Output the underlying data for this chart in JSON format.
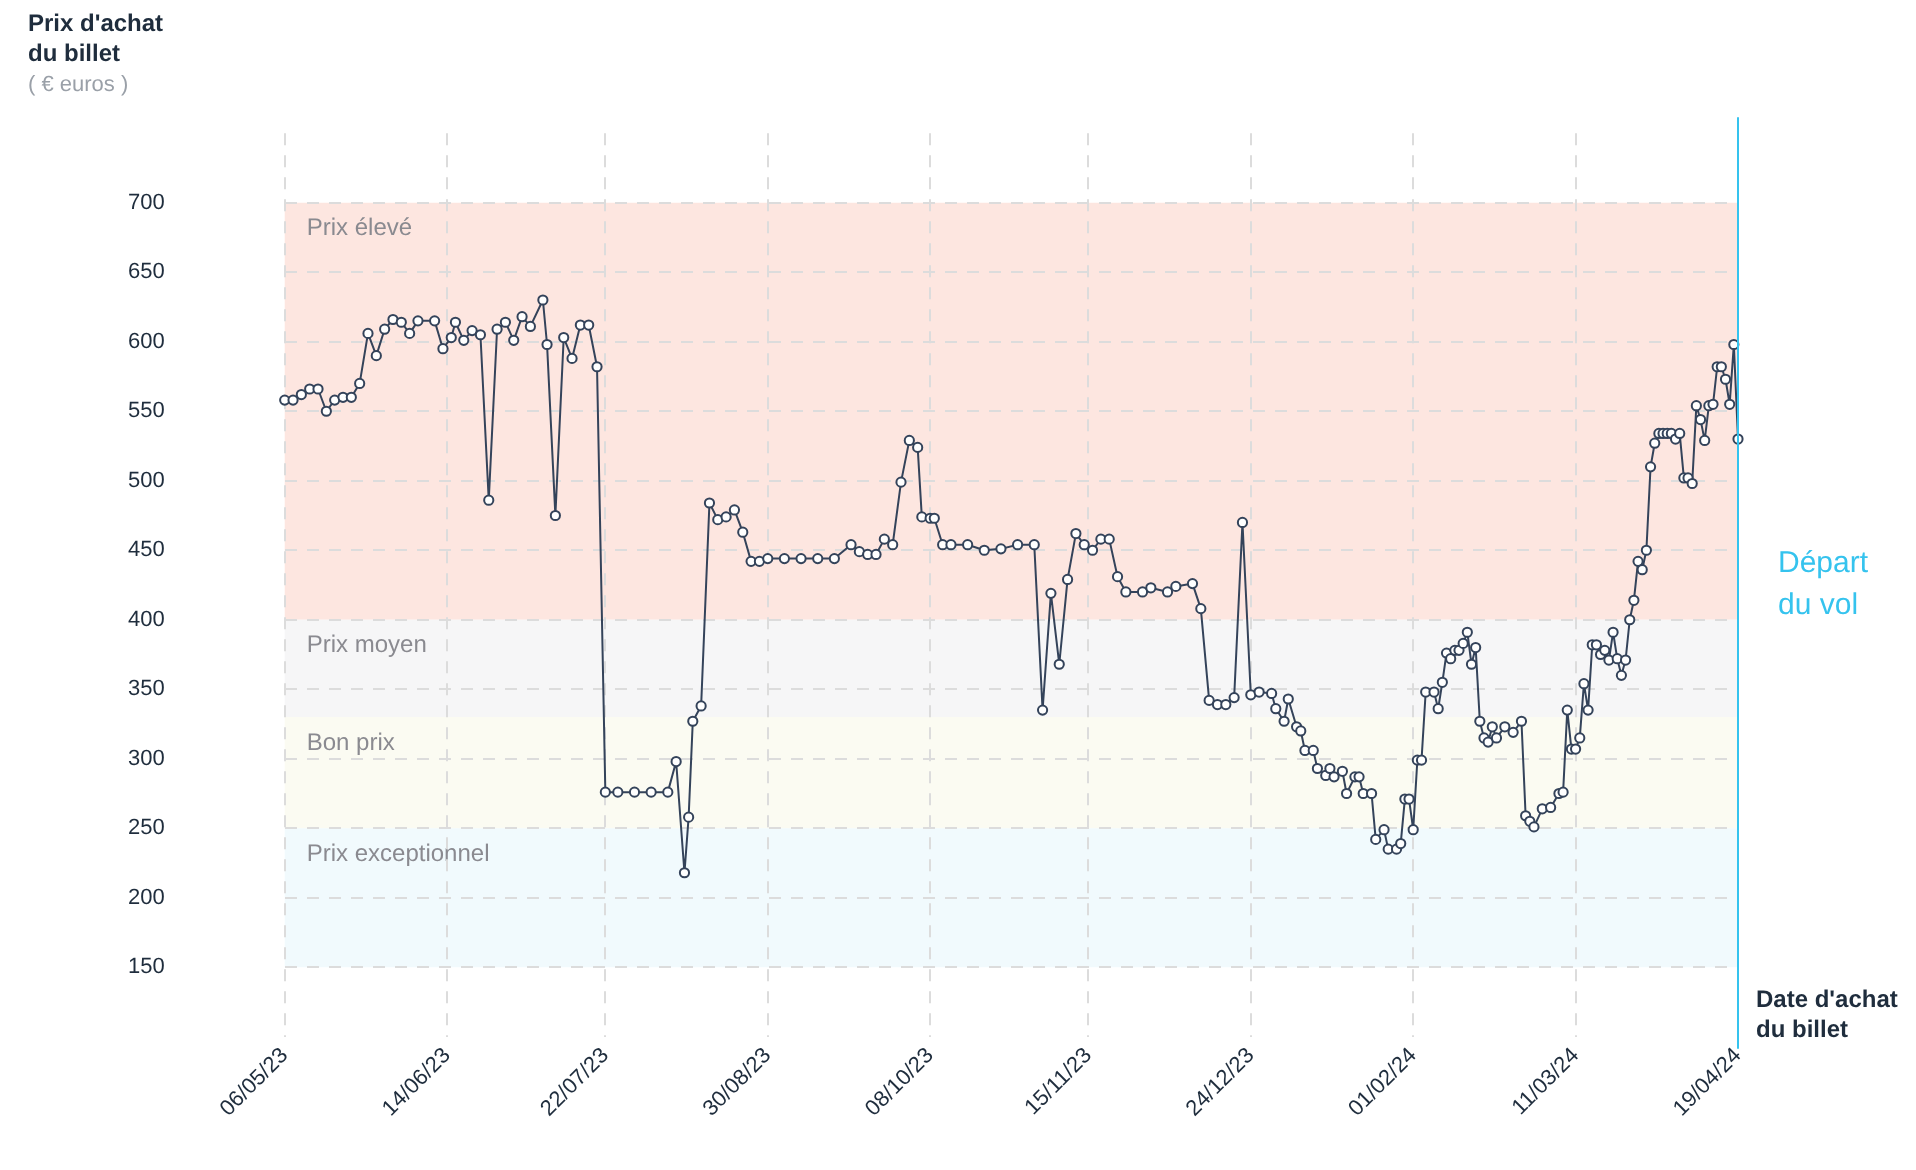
{
  "chart_data": {
    "type": "line",
    "ylabel": "Prix d'achat du billet",
    "xlabel": "Date d'achat du billet",
    "annotations": [
      "( € euros )"
    ],
    "xlim": [
      "2023-05-06",
      "2024-04-19"
    ],
    "xticks": [
      {
        "value": "2023-05-06",
        "label": "06/05/23"
      },
      {
        "value": "2023-06-14",
        "label": "14/06/23"
      },
      {
        "value": "2023-07-22",
        "label": "22/07/23"
      },
      {
        "value": "2023-08-30",
        "label": "30/08/23"
      },
      {
        "value": "2023-10-08",
        "label": "08/10/23"
      },
      {
        "value": "2023-11-15",
        "label": "15/11/23"
      },
      {
        "value": "2023-12-24",
        "label": "24/12/23"
      },
      {
        "value": "2024-02-01",
        "label": "01/02/24"
      },
      {
        "value": "2024-03-11",
        "label": "11/03/24"
      },
      {
        "value": "2024-04-19",
        "label": "19/04/24"
      }
    ],
    "ylim": [
      100,
      750
    ],
    "yticks": [
      150,
      200,
      250,
      300,
      350,
      400,
      450,
      500,
      550,
      600,
      650,
      700
    ],
    "grid": true,
    "legend": false,
    "marker": "circle",
    "line_style": "solid",
    "bands": [
      {
        "axis": "y",
        "from": 400,
        "to": 700,
        "label": "Prix élevé",
        "color": "#fde6e0"
      },
      {
        "axis": "y",
        "from": 330,
        "to": 400,
        "label": "Prix moyen",
        "color": "#f6f6f7"
      },
      {
        "axis": "y",
        "from": 250,
        "to": 330,
        "label": "Bon prix",
        "color": "#fbfbf2"
      },
      {
        "axis": "y",
        "from": 150,
        "to": 250,
        "label": "Prix exceptionnel",
        "color": "#f1fafd"
      }
    ],
    "ref_lines": [
      {
        "axis": "x",
        "value": "2024-04-19",
        "label": "Départ du vol",
        "color": "#35c3ee"
      }
    ],
    "series": [
      {
        "color": "#34435a",
        "x": [
          "2023-05-06",
          "2023-05-08",
          "2023-05-10",
          "2023-05-12",
          "2023-05-14",
          "2023-05-16",
          "2023-05-18",
          "2023-05-20",
          "2023-05-22",
          "2023-05-24",
          "2023-05-26",
          "2023-05-28",
          "2023-05-30",
          "2023-06-01",
          "2023-06-03",
          "2023-06-05",
          "2023-06-07",
          "2023-06-11",
          "2023-06-13",
          "2023-06-15",
          "2023-06-16",
          "2023-06-18",
          "2023-06-20",
          "2023-06-22",
          "2023-06-24",
          "2023-06-26",
          "2023-06-28",
          "2023-06-30",
          "2023-07-02",
          "2023-07-04",
          "2023-07-07",
          "2023-07-08",
          "2023-07-10",
          "2023-07-12",
          "2023-07-14",
          "2023-07-16",
          "2023-07-18",
          "2023-07-20",
          "2023-07-22",
          "2023-07-25",
          "2023-07-29",
          "2023-08-02",
          "2023-08-06",
          "2023-08-08",
          "2023-08-10",
          "2023-08-11",
          "2023-08-12",
          "2023-08-14",
          "2023-08-16",
          "2023-08-18",
          "2023-08-20",
          "2023-08-22",
          "2023-08-24",
          "2023-08-26",
          "2023-08-28",
          "2023-08-30",
          "2023-09-03",
          "2023-09-07",
          "2023-09-11",
          "2023-09-15",
          "2023-09-19",
          "2023-09-21",
          "2023-09-23",
          "2023-09-25",
          "2023-09-27",
          "2023-09-29",
          "2023-10-01",
          "2023-10-03",
          "2023-10-05",
          "2023-10-06",
          "2023-10-08",
          "2023-10-09",
          "2023-10-11",
          "2023-10-13",
          "2023-10-17",
          "2023-10-21",
          "2023-10-25",
          "2023-10-29",
          "2023-11-02",
          "2023-11-04",
          "2023-11-06",
          "2023-11-08",
          "2023-11-10",
          "2023-11-12",
          "2023-11-14",
          "2023-11-16",
          "2023-11-18",
          "2023-11-20",
          "2023-11-22",
          "2023-11-24",
          "2023-11-28",
          "2023-11-30",
          "2023-12-04",
          "2023-12-06",
          "2023-12-10",
          "2023-12-12",
          "2023-12-14",
          "2023-12-16",
          "2023-12-18",
          "2023-12-20",
          "2023-12-22",
          "2023-12-24",
          "2023-12-26",
          "2023-12-29",
          "2023-12-30",
          "2024-01-01",
          "2024-01-02",
          "2024-01-04",
          "2024-01-05",
          "2024-01-06",
          "2024-01-08",
          "2024-01-09",
          "2024-01-11",
          "2024-01-12",
          "2024-01-13",
          "2024-01-15",
          "2024-01-16",
          "2024-01-18",
          "2024-01-19",
          "2024-01-20",
          "2024-01-22",
          "2024-01-23",
          "2024-01-25",
          "2024-01-26",
          "2024-01-28",
          "2024-01-29",
          "2024-01-30",
          "2024-01-31",
          "2024-02-01",
          "2024-02-02",
          "2024-02-03",
          "2024-02-04",
          "2024-02-06",
          "2024-02-07",
          "2024-02-08",
          "2024-02-09",
          "2024-02-10",
          "2024-02-11",
          "2024-02-12",
          "2024-02-13",
          "2024-02-14",
          "2024-02-15",
          "2024-02-16",
          "2024-02-17",
          "2024-02-18",
          "2024-02-19",
          "2024-02-20",
          "2024-02-21",
          "2024-02-23",
          "2024-02-25",
          "2024-02-27",
          "2024-02-28",
          "2024-02-29",
          "2024-03-01",
          "2024-03-03",
          "2024-03-05",
          "2024-03-07",
          "2024-03-08",
          "2024-03-09",
          "2024-03-10",
          "2024-03-11",
          "2024-03-12",
          "2024-03-13",
          "2024-03-14",
          "2024-03-15",
          "2024-03-16",
          "2024-03-17",
          "2024-03-18",
          "2024-03-19",
          "2024-03-20",
          "2024-03-21",
          "2024-03-22",
          "2024-03-23",
          "2024-03-24",
          "2024-03-25",
          "2024-03-26",
          "2024-03-27",
          "2024-03-28",
          "2024-03-29",
          "2024-03-30",
          "2024-03-31",
          "2024-04-01",
          "2024-04-02",
          "2024-04-03",
          "2024-04-04",
          "2024-04-05",
          "2024-04-06",
          "2024-04-07",
          "2024-04-08",
          "2024-04-09",
          "2024-04-10",
          "2024-04-11",
          "2024-04-12",
          "2024-04-13",
          "2024-04-14",
          "2024-04-15",
          "2024-04-16",
          "2024-04-17",
          "2024-04-18",
          "2024-04-19"
        ],
        "values": [
          558,
          558,
          562,
          566,
          566,
          550,
          558,
          560,
          560,
          570,
          606,
          590,
          609,
          616,
          614,
          606,
          615,
          615,
          595,
          603,
          614,
          601,
          608,
          605,
          486,
          609,
          614,
          601,
          618,
          611,
          630,
          598,
          475,
          603,
          588,
          612,
          612,
          582,
          276,
          276,
          276,
          276,
          276,
          298,
          218,
          258,
          327,
          338,
          484,
          472,
          474,
          479,
          463,
          442,
          442,
          444,
          444,
          444,
          444,
          444,
          454,
          449,
          447,
          447,
          458,
          454,
          499,
          529,
          524,
          474,
          473,
          473,
          454,
          454,
          454,
          450,
          451,
          454,
          454,
          335,
          419,
          368,
          429,
          462,
          454,
          450,
          458,
          458,
          431,
          420,
          420,
          423,
          420,
          424,
          426,
          408,
          342,
          339,
          339,
          344,
          470,
          346,
          348,
          347,
          336,
          327,
          343,
          323,
          320,
          306,
          306,
          293,
          288,
          293,
          287,
          291,
          275,
          287,
          287,
          275,
          275,
          242,
          249,
          235,
          235,
          239,
          271,
          271,
          249,
          299,
          299,
          348,
          348,
          336,
          355,
          376,
          372,
          378,
          378,
          383,
          391,
          368,
          380,
          327,
          315,
          312,
          323,
          315,
          323,
          319,
          327,
          259,
          255,
          251,
          264,
          265,
          275,
          276,
          335,
          307,
          307,
          315,
          354,
          335,
          382,
          382,
          375,
          378,
          371,
          391,
          372,
          360,
          371,
          400,
          414,
          442,
          436,
          450,
          510,
          527,
          534,
          534,
          534,
          534,
          530,
          534,
          502,
          502,
          498,
          554,
          544,
          529,
          554,
          555,
          582,
          582,
          573,
          555,
          598,
          530
        ]
      }
    ]
  }
}
